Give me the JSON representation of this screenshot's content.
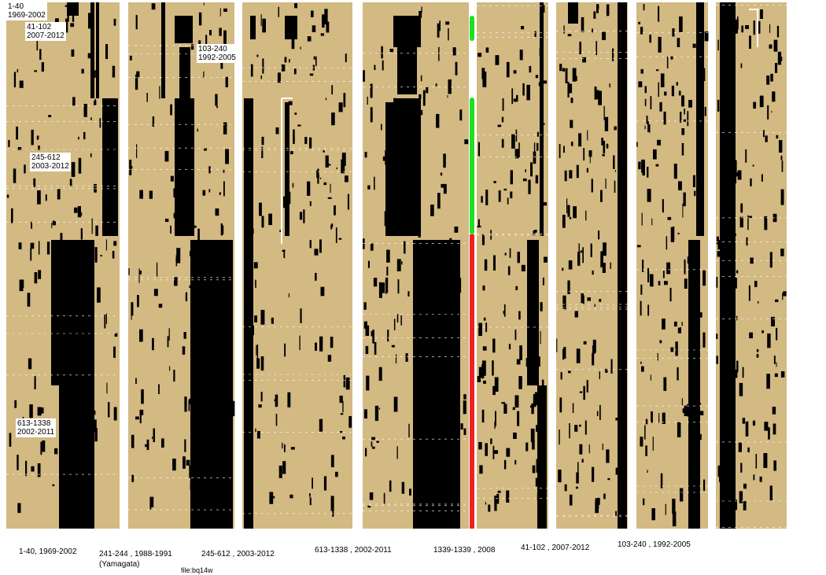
{
  "overlay_labels": [
    {
      "range": "1-40",
      "years": "1969-2002"
    },
    {
      "range": "41-102",
      "years": "2007-2012"
    },
    {
      "range": "103-240",
      "years": "1992-2005"
    },
    {
      "range": "245-612",
      "years": "2003-2012"
    },
    {
      "range": "613-1338",
      "years": "2002-2011"
    }
  ],
  "captions": [
    "1-40, 1969-2002",
    "241-244 , 1988-1991",
    "(Yamagata)",
    "245-612 , 2003-2012",
    "613-1338 , 2002-2011",
    "1339-1339 , 2008",
    "41-102 , 2007-2012",
    "103-240 , 1992-2005"
  ],
  "file_label": "file:bq14w"
}
